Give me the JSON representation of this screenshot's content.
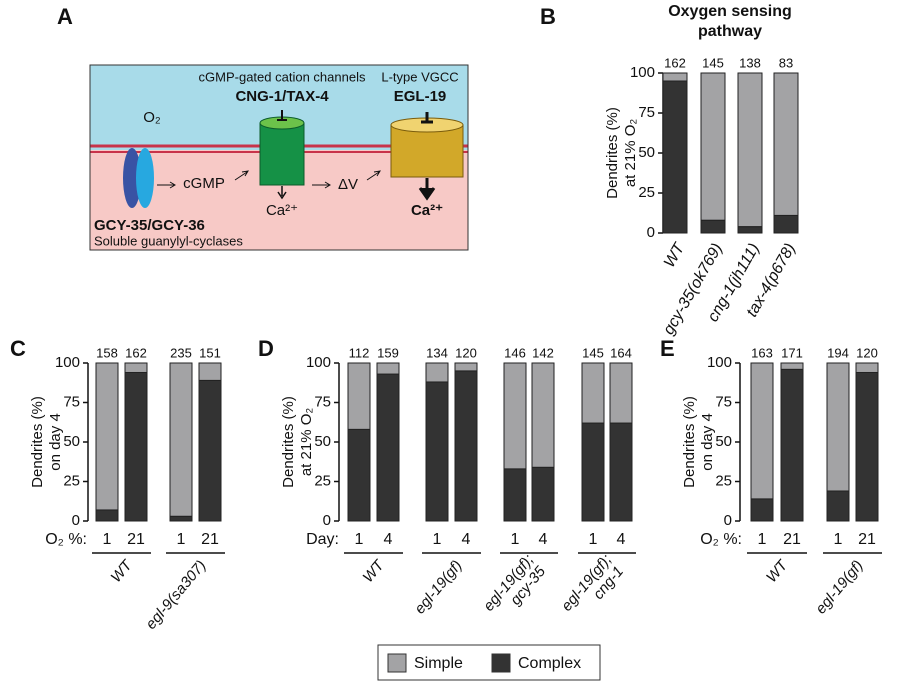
{
  "diagram": {
    "panel": "A",
    "channel_caption": "cGMP-gated cation channels",
    "channel_name": "CNG-1/TAX-4",
    "vgcc_caption": "L-type VGCC",
    "vgcc_name": "EGL-19",
    "oxygen": "O₂",
    "cgmp": "cGMP",
    "delta_v": "ΔV",
    "calcium_channel": "Ca²⁺",
    "calcium_vgcc": "Ca²⁺",
    "cyclase_name": "GCY-35/GCY-36",
    "cyclase_caption": "Soluble guanylyl-cyclases"
  },
  "legend": [
    {
      "name": "Simple",
      "color": "#a3a3a5"
    },
    {
      "name": "Complex",
      "color": "#333333"
    }
  ],
  "chart_data": [
    {
      "type": "bar",
      "stacked": true,
      "panel": "B",
      "title": [
        "Oxygen sensing",
        "pathway"
      ],
      "ylabel": [
        "Dendrites (%)",
        "at 21% O₂"
      ],
      "categories": [
        "WT",
        "gcy-35(ok769)",
        "cng-1(jh111)",
        "tax-4(p678)"
      ],
      "series": [
        {
          "color": "#a3a3a5",
          "values": [
            5,
            92,
            96,
            89
          ]
        },
        {
          "color": "#333333",
          "values": [
            95,
            8,
            4,
            11
          ]
        }
      ],
      "n_labels": [
        162,
        145,
        138,
        83
      ],
      "ylim": [
        0,
        100
      ],
      "yticks": [
        0,
        25,
        50,
        75,
        100
      ]
    },
    {
      "type": "bar",
      "stacked": true,
      "panel": "C",
      "ylabel": [
        "Dendrites (%)",
        "on day 4"
      ],
      "category_axis_label": "O₂ %:",
      "categories": [
        "1",
        "21",
        "1",
        "21"
      ],
      "groups": [
        [
          "WT"
        ],
        [
          "egl-9(sa307)"
        ]
      ],
      "series": [
        {
          "color": "#a3a3a5",
          "values": [
            93,
            6,
            97,
            11
          ]
        },
        {
          "color": "#333333",
          "values": [
            7,
            94,
            3,
            89
          ]
        }
      ],
      "n_labels": [
        158,
        162,
        235,
        151
      ],
      "ylim": [
        0,
        100
      ],
      "yticks": [
        0,
        25,
        50,
        75,
        100
      ]
    },
    {
      "type": "bar",
      "stacked": true,
      "panel": "D",
      "ylabel": [
        "Dendrites (%)",
        "at 21% O₂"
      ],
      "category_axis_label": "Day:",
      "categories": [
        "1",
        "4",
        "1",
        "4",
        "1",
        "4",
        "1",
        "4"
      ],
      "groups": [
        [
          "WT"
        ],
        [
          "egl-19(gf)"
        ],
        [
          "egl-19(gf);",
          "gcy-35"
        ],
        [
          "egl-19(gf);",
          "cng-1"
        ]
      ],
      "series": [
        {
          "color": "#a3a3a5",
          "values": [
            42,
            7,
            12,
            5,
            67,
            66,
            38,
            38
          ]
        },
        {
          "color": "#333333",
          "values": [
            58,
            93,
            88,
            95,
            33,
            34,
            62,
            62
          ]
        }
      ],
      "n_labels": [
        112,
        159,
        134,
        120,
        146,
        142,
        145,
        164
      ],
      "ylim": [
        0,
        100
      ],
      "yticks": [
        0,
        25,
        50,
        75,
        100
      ]
    },
    {
      "type": "bar",
      "stacked": true,
      "panel": "E",
      "ylabel": [
        "Dendrites (%)",
        "on day 4"
      ],
      "category_axis_label": "O₂ %:",
      "categories": [
        "1",
        "21",
        "1",
        "21"
      ],
      "groups": [
        [
          "WT"
        ],
        [
          "egl-19(gf)"
        ]
      ],
      "series": [
        {
          "color": "#a3a3a5",
          "values": [
            86,
            4,
            81,
            6
          ]
        },
        {
          "color": "#333333",
          "values": [
            14,
            96,
            19,
            94
          ]
        }
      ],
      "n_labels": [
        163,
        171,
        194,
        120
      ],
      "ylim": [
        0,
        100
      ],
      "yticks": [
        0,
        25,
        50,
        75,
        100
      ]
    }
  ]
}
